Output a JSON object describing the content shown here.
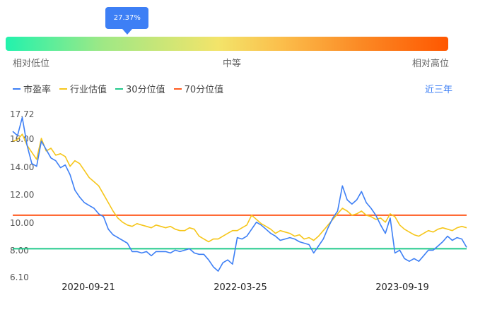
{
  "gauge": {
    "percent": 0.2737,
    "tooltip": "27.37%",
    "labels": {
      "low": "相对低位",
      "mid": "中等",
      "high": "相对高位"
    }
  },
  "legend": {
    "items": [
      {
        "label": "市盈率",
        "color": "#3d7ff5"
      },
      {
        "label": "行业估值",
        "color": "#f6c61a"
      },
      {
        "label": "30分位值",
        "color": "#22c98b"
      },
      {
        "label": "70分位值",
        "color": "#ff5a1f"
      }
    ]
  },
  "period_selector": {
    "label": "近三年"
  },
  "chart_data": {
    "type": "line",
    "ylim": [
      6.1,
      17.72
    ],
    "y_ticks": [
      "17.72",
      "16.00",
      "14.00",
      "12.00",
      "10.00",
      "8.00",
      "6.10"
    ],
    "x_ticks": [
      "2020-09-21",
      "2022-03-25",
      "2023-09-19"
    ],
    "series": [
      {
        "name": "市盈率",
        "color": "#3d7ff5",
        "values": [
          16.5,
          16.2,
          17.5,
          15.5,
          14.2,
          14.0,
          15.8,
          15.2,
          14.6,
          14.4,
          13.9,
          14.1,
          13.4,
          12.3,
          11.8,
          11.4,
          11.2,
          11.0,
          10.6,
          10.4,
          9.5,
          9.1,
          8.9,
          8.7,
          8.5,
          7.9,
          7.9,
          7.8,
          7.9,
          7.6,
          7.9,
          7.9,
          7.9,
          7.8,
          8.0,
          7.9,
          8.0,
          8.1,
          7.8,
          7.7,
          7.7,
          7.3,
          6.8,
          6.5,
          7.1,
          7.3,
          7.0,
          8.9,
          8.8,
          9.0,
          9.5,
          10.0,
          9.8,
          9.5,
          9.2,
          9.0,
          8.7,
          8.8,
          8.9,
          8.8,
          8.6,
          8.5,
          8.4,
          7.8,
          8.3,
          8.8,
          9.6,
          10.3,
          10.8,
          12.6,
          11.6,
          11.3,
          11.6,
          12.2,
          11.4,
          11.0,
          10.5,
          9.8,
          9.2,
          10.3,
          7.8,
          8.0,
          7.4,
          7.2,
          7.4,
          7.2,
          7.6,
          8.0,
          8.0,
          8.3,
          8.6,
          9.0,
          8.7,
          8.9,
          8.8,
          8.2
        ]
      },
      {
        "name": "行业估值",
        "color": "#f6c61a",
        "values": [
          15.8,
          15.9,
          16.3,
          15.5,
          15.0,
          14.5,
          16.0,
          15.1,
          15.3,
          14.8,
          14.9,
          14.7,
          14.0,
          14.4,
          14.2,
          13.7,
          13.2,
          12.9,
          12.6,
          12.0,
          11.4,
          10.8,
          10.3,
          10.0,
          9.8,
          9.7,
          9.9,
          9.8,
          9.7,
          9.6,
          9.8,
          9.7,
          9.6,
          9.7,
          9.5,
          9.4,
          9.4,
          9.6,
          9.5,
          9.0,
          8.8,
          8.6,
          8.8,
          8.8,
          9.0,
          9.2,
          9.4,
          9.4,
          9.6,
          9.8,
          10.5,
          10.2,
          9.9,
          9.7,
          9.5,
          9.2,
          9.4,
          9.3,
          9.2,
          9.0,
          9.1,
          8.8,
          8.9,
          8.7,
          9.0,
          9.4,
          9.8,
          10.2,
          10.6,
          11.0,
          10.8,
          10.5,
          10.6,
          10.8,
          10.5,
          10.4,
          10.2,
          10.3,
          10.0,
          10.6,
          10.4,
          9.8,
          9.5,
          9.3,
          9.1,
          9.0,
          9.2,
          9.4,
          9.3,
          9.5,
          9.6,
          9.5,
          9.4,
          9.6,
          9.7,
          9.6
        ]
      },
      {
        "name": "30分位值",
        "color": "#22c98b",
        "values": [
          8.1
        ]
      },
      {
        "name": "70分位值",
        "color": "#ff5a1f",
        "values": [
          10.5
        ]
      }
    ]
  }
}
